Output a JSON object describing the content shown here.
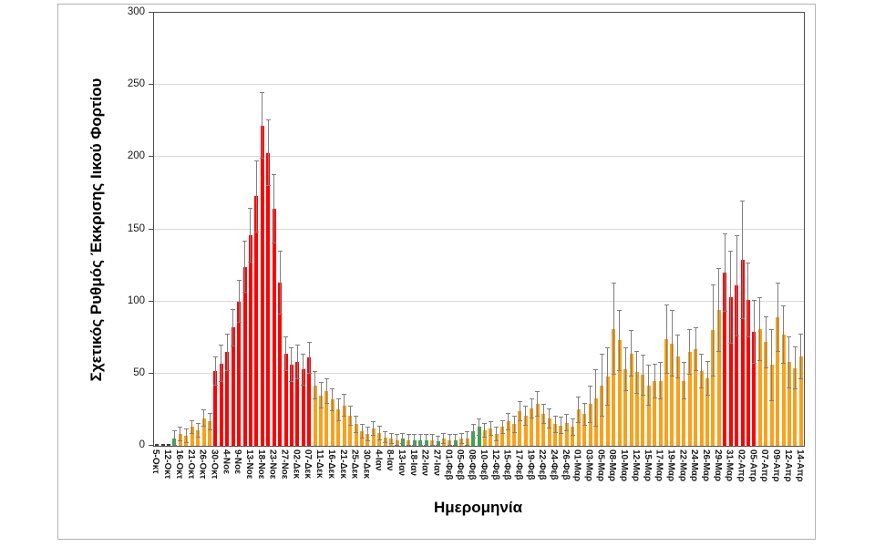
{
  "chart_data": {
    "type": "bar",
    "title": "",
    "xlabel": "Ημερομηνία",
    "ylabel": "Σχετικός Ρυθμός Έκκρισης Ιικού Φορτίου",
    "ylim": [
      0,
      300
    ],
    "yticks": [
      0,
      50,
      100,
      150,
      200,
      250,
      300
    ],
    "grid": true,
    "legend": "none",
    "x_tick_labels": [
      "5-Οκτ",
      "12-Οκτ",
      "16-Οκτ",
      "21-Οκτ",
      "26-Οκτ",
      "30-Οκτ",
      "4-Νοε",
      "9-Νοε",
      "13-Νοε",
      "18-Νοε",
      "23-Νοε",
      "27-Νοε",
      "02-Δεκ",
      "07-Δεκ",
      "11-Δεκ",
      "16-Δεκ",
      "21-Δεκ",
      "25-Δεκ",
      "30-Δεκ",
      "4-Ιαν",
      "8-Ιαν",
      "13-Ιαν",
      "18-Ιαν",
      "22-Ιαν",
      "27-Ιαν",
      "01-Φεβ",
      "05-Φεβ",
      "08-Φεβ",
      "10-Φεβ",
      "12-Φεβ",
      "15-Φεβ",
      "17-Φεβ",
      "19-Φεβ",
      "22-Φεβ",
      "24-Φεβ",
      "26-Φεβ",
      "01-Μαρ",
      "03-Μαρ",
      "05-Μαρ",
      "08-Μαρ",
      "10-Μαρ",
      "12-Μαρ",
      "15-Μαρ",
      "17-Μαρ",
      "19-Μαρ",
      "22-Μαρ",
      "24-Μαρ",
      "26-Μαρ",
      "29-Μαρ",
      "31-Μαρ",
      "02-Απρ",
      "05-Απρ",
      "07-Απρ",
      "09-Απρ",
      "12-Απρ",
      "14-Απρ"
    ],
    "label_every_n_bars": 2,
    "values": [
      1,
      1,
      1,
      5,
      8,
      7,
      13,
      11,
      19,
      17,
      52,
      57,
      65,
      82,
      100,
      124,
      146,
      173,
      222,
      203,
      164,
      113,
      64,
      56,
      58,
      53,
      61,
      42,
      35,
      38,
      32,
      25,
      28,
      21,
      15,
      10,
      8,
      12,
      9,
      6,
      5,
      4,
      5,
      4,
      4,
      4,
      4,
      4,
      3,
      5,
      4,
      4,
      5,
      5,
      10,
      13,
      11,
      12,
      8,
      13,
      17,
      15,
      24,
      21,
      26,
      29,
      22,
      19,
      15,
      14,
      16,
      13,
      25,
      22,
      29,
      33,
      42,
      48,
      81,
      73,
      53,
      64,
      51,
      49,
      42,
      45,
      45,
      74,
      71,
      62,
      45,
      65,
      67,
      52,
      47,
      80,
      94,
      120,
      103,
      111,
      129,
      101,
      79,
      81,
      72,
      56,
      89,
      77,
      58,
      54,
      62
    ],
    "error_plus_minus": [
      0,
      0,
      0,
      6,
      5,
      5,
      5,
      5,
      6,
      6,
      10,
      13,
      13,
      13,
      15,
      18,
      19,
      25,
      23,
      23,
      24,
      22,
      12,
      12,
      12,
      11,
      11,
      10,
      9,
      9,
      8,
      8,
      8,
      7,
      6,
      5,
      5,
      5,
      5,
      4,
      4,
      4,
      4,
      4,
      4,
      4,
      4,
      4,
      4,
      4,
      4,
      4,
      4,
      5,
      5,
      6,
      5,
      5,
      5,
      5,
      6,
      6,
      7,
      7,
      7,
      9,
      7,
      7,
      6,
      6,
      6,
      6,
      9,
      8,
      13,
      20,
      22,
      20,
      32,
      21,
      15,
      16,
      15,
      14,
      14,
      12,
      13,
      24,
      23,
      15,
      13,
      16,
      15,
      12,
      12,
      32,
      29,
      27,
      32,
      35,
      41,
      26,
      22,
      22,
      18,
      25,
      24,
      20,
      18,
      15,
      16
    ],
    "bar_color_codes": "dddgoooooorrrrrrrrrrrrrrrrrooooooooooooooqgogggogqogooggooooooooooooooooooooooooooooooooooooooooorrrrrrooooooooo",
    "color_key": {
      "d": "#404040",
      "g": "#35a84c",
      "o": "#f9a11b",
      "r": "#ff0000",
      "q": "#f9a11b"
    },
    "error_bar_color": "#7f7f7f",
    "gridline_color": "#d9d9d9"
  }
}
